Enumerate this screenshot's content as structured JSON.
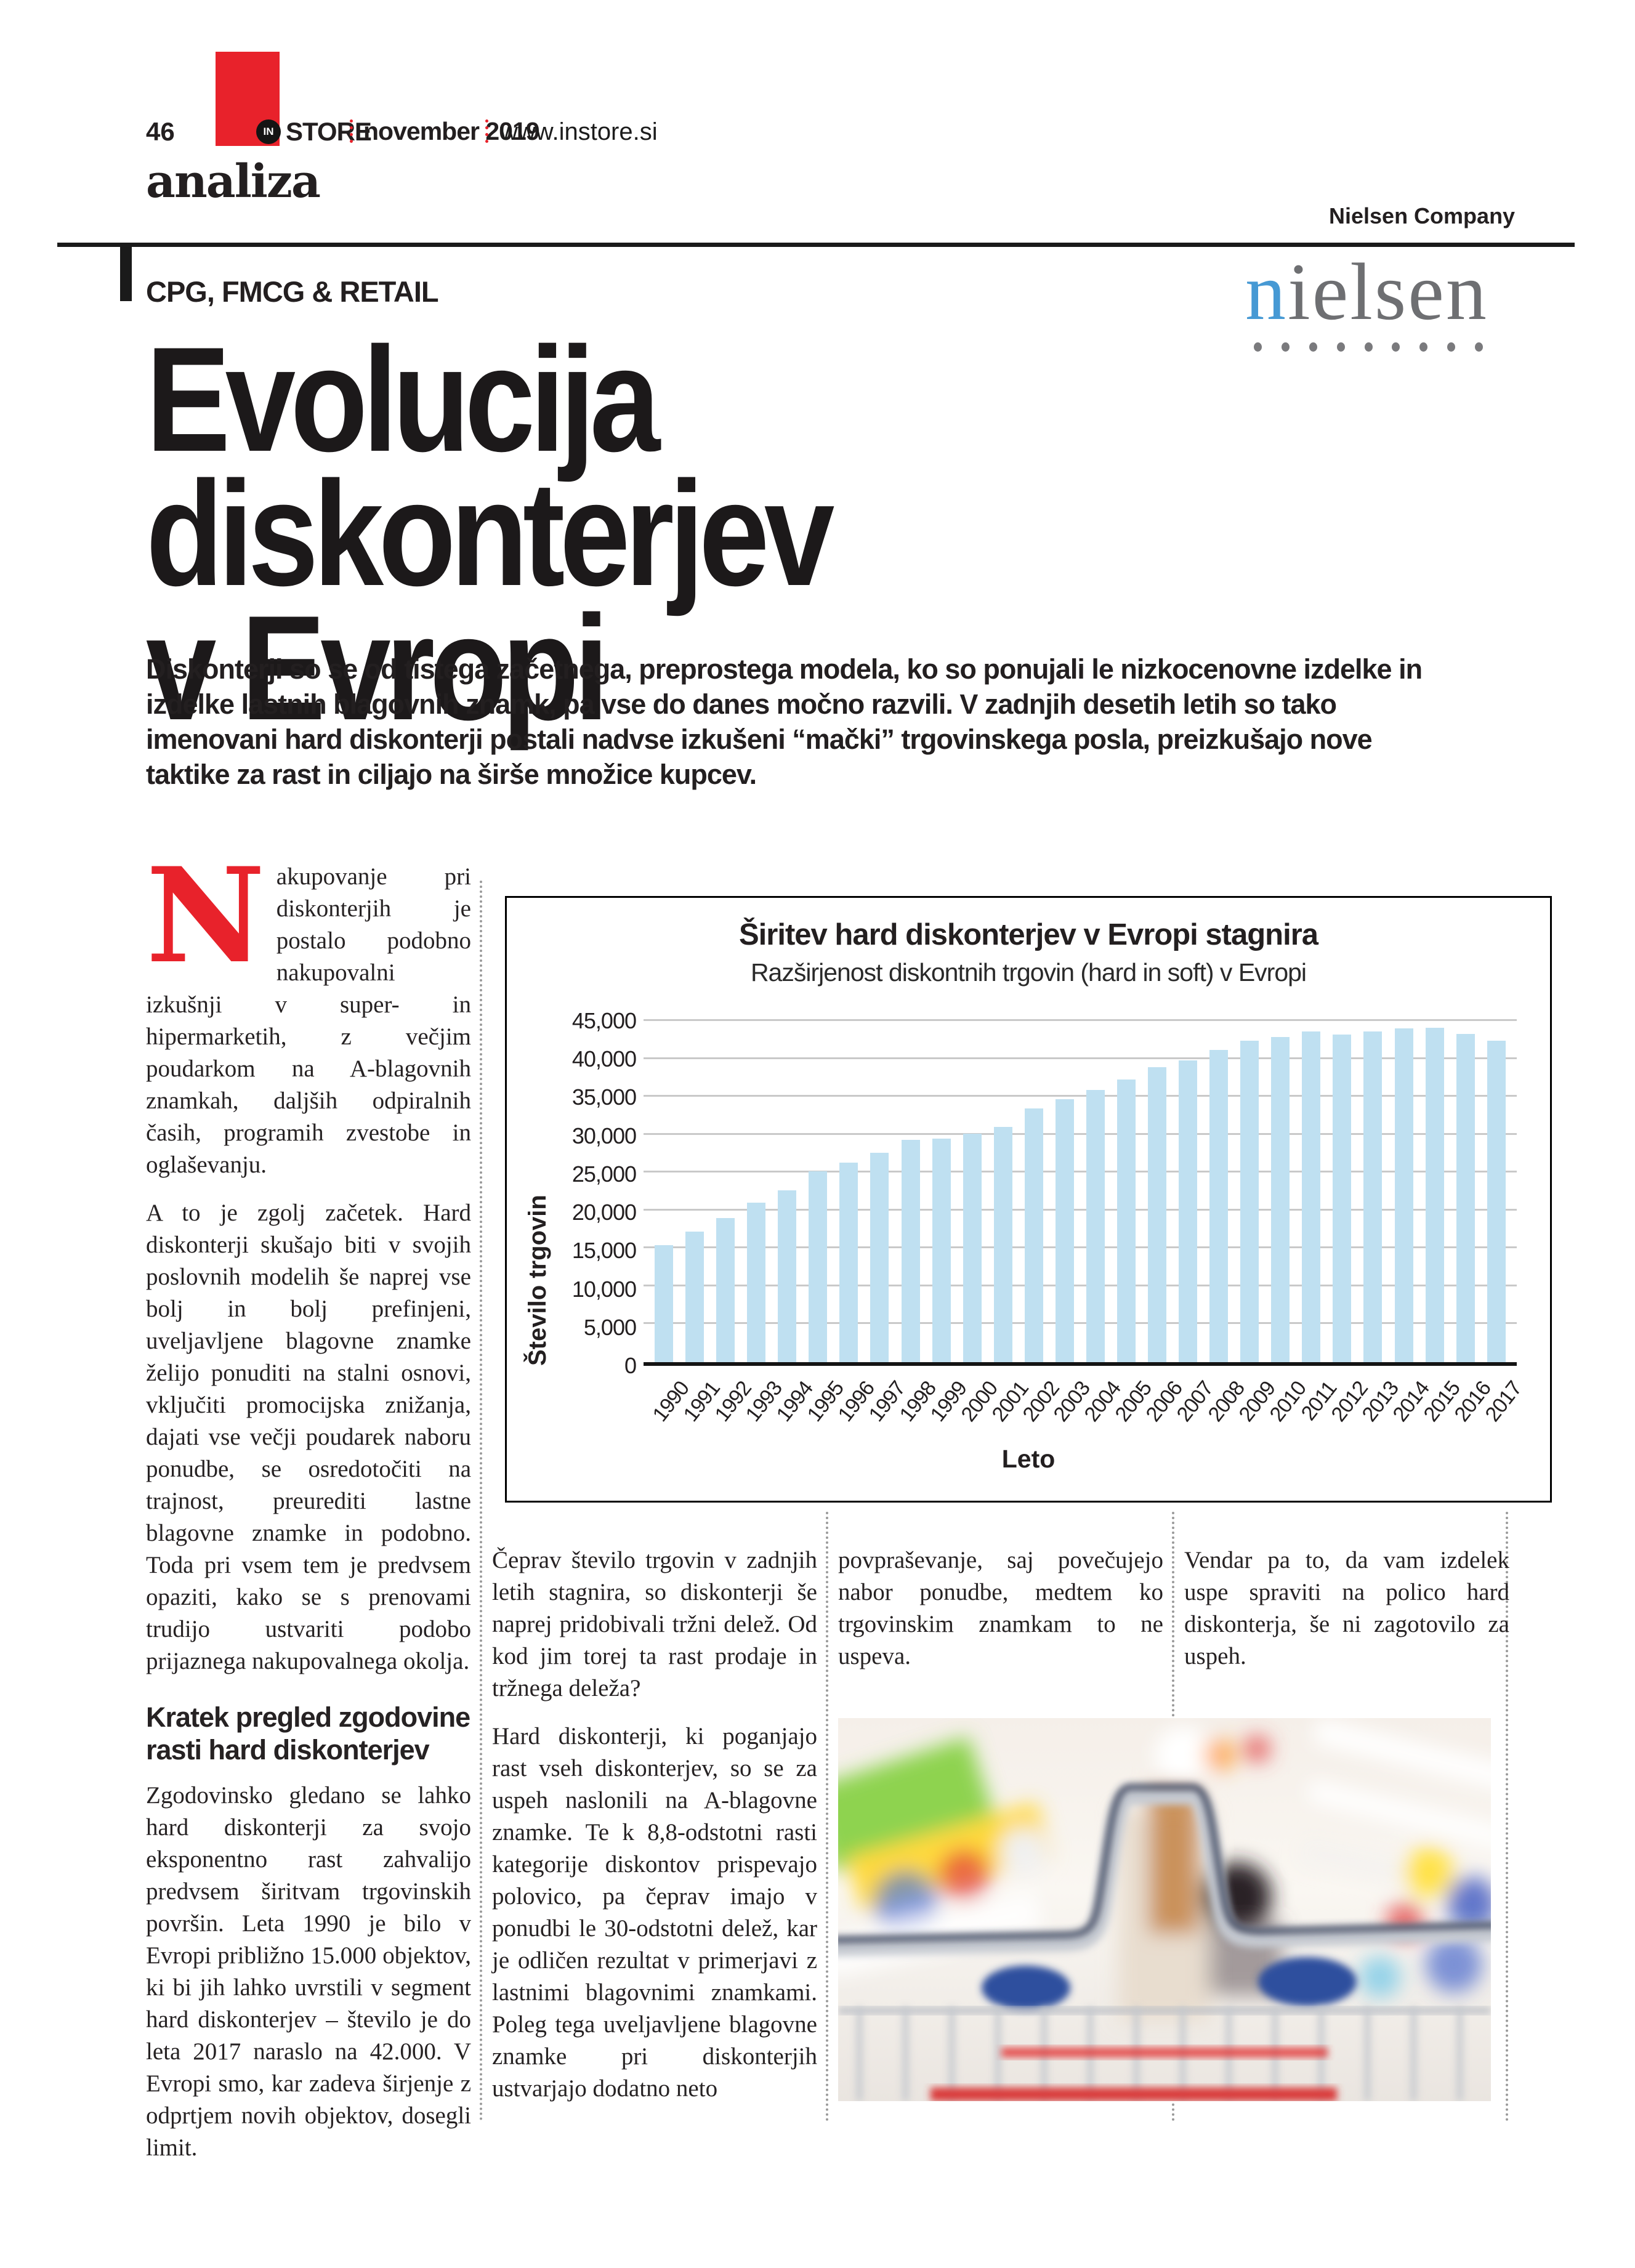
{
  "header": {
    "page_number": "46",
    "logo_in": "IN",
    "logo_store": "STORE",
    "date": "november 2019",
    "website": "www.instore.si",
    "section": "analiza",
    "company": "Nielsen Company",
    "kicker": "CPG, FMCG & RETAIL",
    "nielsen_logo_first": "n",
    "nielsen_logo_rest": "ielsen"
  },
  "headline": {
    "line1": "Evolucija diskonterjev",
    "line2": "v Evropi"
  },
  "lead": "Diskonterji so se od tistega začetnega, preprostega modela, ko so ponujali le nizkocenovne izdelke in izdelke lastnih blagovnih znamk, pa vse do danes močno razvili. V zadnjih desetih letih so tako imenovani hard diskonterji postali nadvse izkušeni “mački” trgovinskega posla, preizkušajo nove taktike za rast in ciljajo na širše množice kupcev.",
  "article": {
    "drop_cap": "N",
    "col1_p1": "akupovanje pri diskonterjih je postalo podobno nakupovalni izkušnji v super- in hipermarketih, z večjim poudarkom na A-blagovnih znamkah, daljših odpiralnih časih, programih zvestobe in oglaševanju.",
    "col1_p2": "A to je zgolj začetek. Hard diskonterji skušajo biti v svojih poslovnih modelih še naprej vse bolj in bolj prefinjeni, uveljavljene blagovne znamke želijo ponuditi na stalni osnovi, vključiti promocijska znižanja, dajati vse večji poudarek naboru ponudbe, se osredotočiti na trajnost, preurediti lastne blagovne znamke in podobno. Toda pri vsem tem je predvsem opaziti, kako se s prenovami trudijo ustvariti podobo prijaznega nakupovalnega okolja.",
    "col1_heading": "Kratek pregled zgodovine rasti hard diskonterjev",
    "col1_p3": "Zgodovinsko gledano se lahko hard diskonterji za svojo eksponentno rast zahvalijo predvsem širitvam trgovinskih površin. Leta 1990 je bilo v Evropi približno 15.000 objektov, ki bi jih lahko uvrstili v segment hard diskonterjev – število je do leta 2017 naraslo na 42.000. V Evropi smo, kar zadeva širjenje z odprtjem novih objektov, dosegli limit.",
    "col2_p1": "Čeprav število trgovin v zadnjih letih stagnira, so diskonterji še naprej pridobivali tržni delež. Od kod jim torej ta rast prodaje in tržnega deleža?",
    "col2_p2": "Hard diskonterji, ki poganjajo rast vseh diskonterjev, so se za uspeh naslonili na A-blagovne znamke. Te k 8,8-odstotni rasti kategorije diskontov prispevajo polovico, pa čeprav imajo v ponudbi le 30-odstotni delež, kar je odličen rezultat v primerjavi z lastnimi blagovnimi znamkami. Poleg tega uveljavljene blagovne znamke pri diskonterjih ustvarjajo dodatno neto",
    "col3_p1": "povpraševanje, saj povečujejo nabor ponudbe, medtem ko trgovinskim znamkam to ne uspeva.",
    "col4_p1": "Vendar pa to, da vam izdelek uspe spraviti na polico hard diskonterja, še ni zagotovilo za uspeh."
  },
  "chart_data": {
    "type": "bar",
    "title": "Širitev hard diskonterjev v Evropi stagnira",
    "subtitle": "Razširjenost diskontnih trgovin (hard in soft) v Evropi",
    "xlabel": "Leto",
    "ylabel": "Število trgovin",
    "ylim": [
      0,
      45000
    ],
    "ytick_step": 5000,
    "grid": true,
    "legend": "none",
    "categories": [
      "1990",
      "1991",
      "1992",
      "1993",
      "1994",
      "1995",
      "1996",
      "1997",
      "1998",
      "1999",
      "2000",
      "2001",
      "2002",
      "2003",
      "2004",
      "2005",
      "2006",
      "2007",
      "2008",
      "2009",
      "2010",
      "2011",
      "2012",
      "2013",
      "2014",
      "2015",
      "2016",
      "2017"
    ],
    "values": [
      15400,
      17200,
      19000,
      21000,
      22700,
      25200,
      26300,
      27600,
      29300,
      29500,
      30100,
      31000,
      33500,
      34700,
      35900,
      37300,
      38900,
      39800,
      41200,
      42400,
      42900,
      43600,
      43200,
      43600,
      44000,
      44100,
      43300,
      42400
    ]
  },
  "photo": {
    "description": "blurred view from shopping cart down a bright supermarket aisle"
  },
  "colors": {
    "accent_red": "#e8222b",
    "bar_fill": "#bfe0f1",
    "nielsen_blue": "#4699d4",
    "text": "#231f20"
  }
}
